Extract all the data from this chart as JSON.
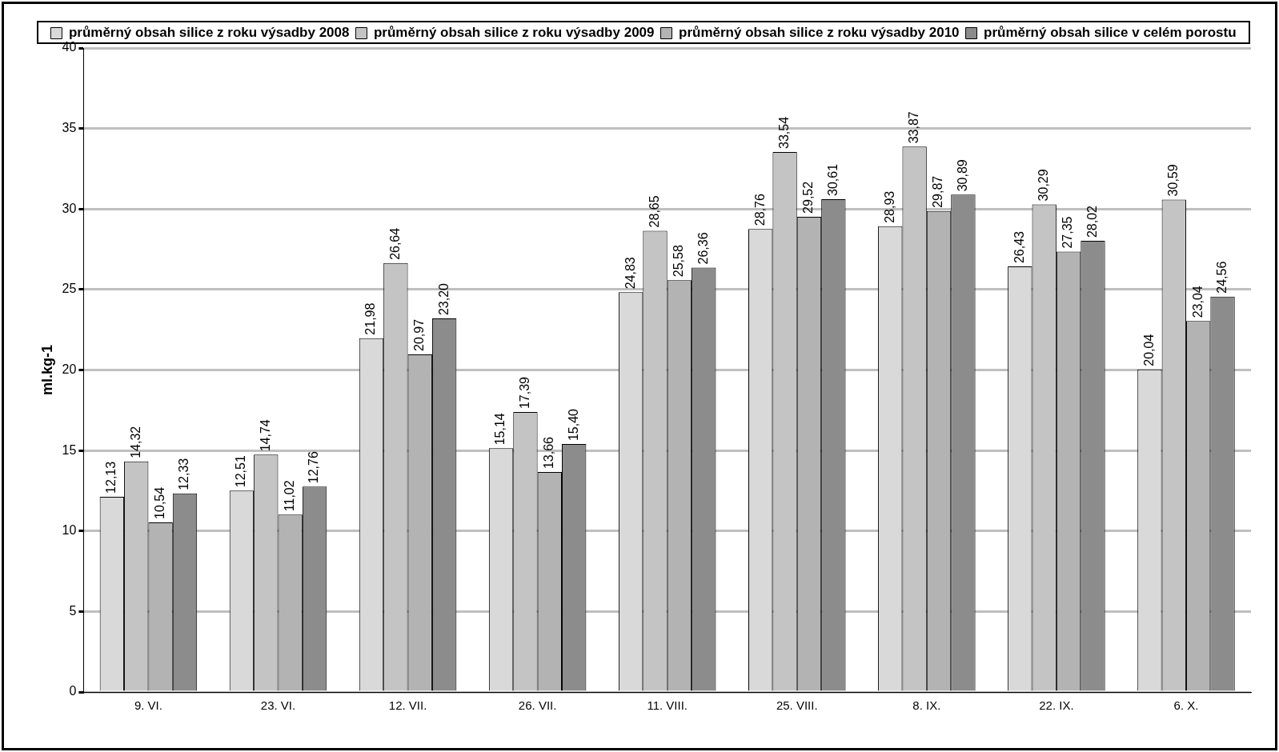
{
  "chart_data": {
    "type": "bar",
    "ylabel": "ml.kg-1",
    "categories": [
      "9. VI.",
      "23. VI.",
      "12. VII.",
      "26. VII.",
      "11. VIII.",
      "25. VIII.",
      "8. IX.",
      "22. IX.",
      "6. X."
    ],
    "series": [
      {
        "name": "průměrný obsah silice z roku výsadby 2008",
        "color": "#d9d9d9",
        "values": [
          12.13,
          12.51,
          21.98,
          15.14,
          24.83,
          28.76,
          28.93,
          26.43,
          20.04
        ],
        "value_labels": [
          "12,13",
          "12,51",
          "21,98",
          "15,14",
          "24,83",
          "28,76",
          "28,93",
          "26,43",
          "20,04"
        ]
      },
      {
        "name": "průměrný obsah silice z roku výsadby 2009",
        "color": "#c4c4c4",
        "values": [
          14.32,
          14.74,
          26.64,
          17.39,
          28.65,
          33.54,
          33.87,
          30.29,
          30.59
        ],
        "value_labels": [
          "14,32",
          "14,74",
          "26,64",
          "17,39",
          "28,65",
          "33,54",
          "33,87",
          "30,29",
          "30,59"
        ]
      },
      {
        "name": "průměrný obsah silice z roku výsadby 2010",
        "color": "#b3b3b3",
        "values": [
          10.54,
          11.02,
          20.97,
          13.66,
          25.58,
          29.52,
          29.87,
          27.35,
          23.04
        ],
        "value_labels": [
          "10,54",
          "11,02",
          "20,97",
          "13,66",
          "25,58",
          "29,52",
          "29,87",
          "27,35",
          "23,04"
        ]
      },
      {
        "name": "průměrný obsah silice v celém porostu",
        "color": "#8c8c8c",
        "values": [
          12.33,
          12.76,
          23.2,
          15.4,
          26.36,
          30.61,
          30.89,
          28.02,
          24.56
        ],
        "value_labels": [
          "12,33",
          "12,76",
          "23,20",
          "15,40",
          "26,36",
          "30,61",
          "30,89",
          "28,02",
          "24,56"
        ]
      }
    ],
    "ylim": [
      0,
      40
    ],
    "yticks": [
      0,
      5,
      10,
      15,
      20,
      25,
      30,
      35,
      40
    ],
    "grid": "y",
    "legend": "top"
  }
}
